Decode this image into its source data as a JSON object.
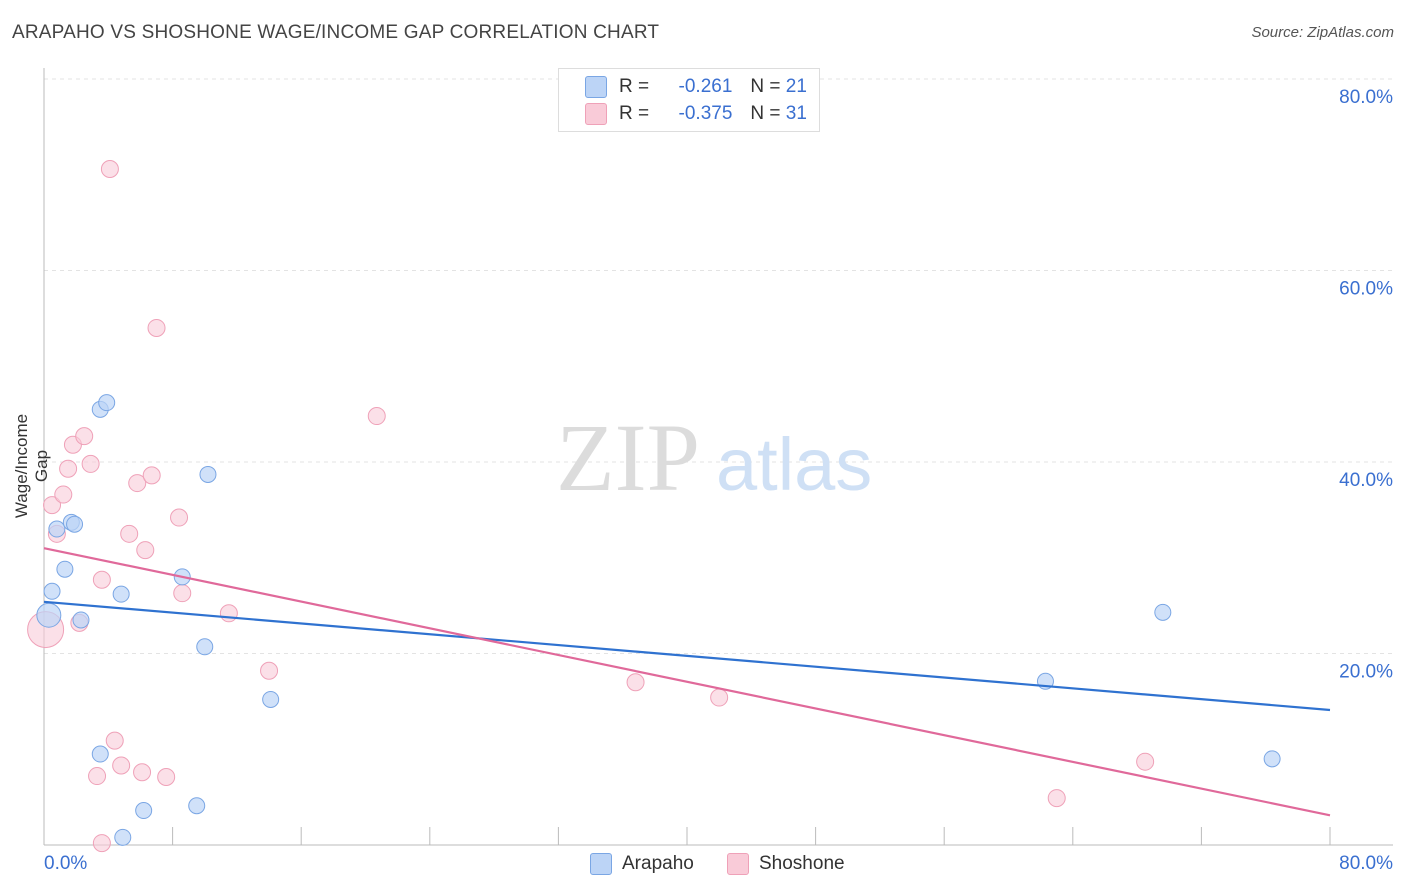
{
  "title": "ARAPAHO VS SHOSHONE WAGE/INCOME GAP CORRELATION CHART",
  "source": "Source: ZipAtlas.com",
  "watermark": {
    "zip": "ZIP",
    "atlas": "atlas"
  },
  "legend": {
    "r_label": "R =",
    "n_label": "N =",
    "arapaho": {
      "r": "-0.261",
      "n": "21"
    },
    "shoshone": {
      "r": "-0.375",
      "n": "31"
    }
  },
  "colors": {
    "arapaho_fill": "#bcd4f6",
    "arapaho_stroke": "#7aa6e4",
    "arapaho_line": "#2f72d0",
    "shoshone_fill": "#f9cbd8",
    "shoshone_stroke": "#efa1b8",
    "shoshone_line": "#e0699a",
    "tick_label": "#3a6fd0"
  },
  "chart_data": {
    "type": "scatter",
    "title": "ARAPAHO VS SHOSHONE WAGE/INCOME GAP CORRELATION CHART",
    "xlabel": "",
    "ylabel": "Wage/Income Gap",
    "xlim": [
      0,
      80
    ],
    "ylim": [
      0,
      80
    ],
    "x_tick_labels": [
      "0.0%",
      "80.0%"
    ],
    "y_tick_labels": [
      "20.0%",
      "40.0%",
      "60.0%",
      "80.0%"
    ],
    "y_ticks": [
      20,
      40,
      60,
      80
    ],
    "series": [
      {
        "name": "Arapaho",
        "points": [
          {
            "x": 0.3,
            "y": 24.0
          },
          {
            "x": 0.5,
            "y": 26.5
          },
          {
            "x": 0.8,
            "y": 33.0
          },
          {
            "x": 1.3,
            "y": 28.8
          },
          {
            "x": 1.7,
            "y": 33.7
          },
          {
            "x": 1.9,
            "y": 33.5
          },
          {
            "x": 2.3,
            "y": 23.5
          },
          {
            "x": 3.5,
            "y": 45.5
          },
          {
            "x": 3.9,
            "y": 46.2
          },
          {
            "x": 3.5,
            "y": 9.5
          },
          {
            "x": 4.8,
            "y": 26.2
          },
          {
            "x": 6.2,
            "y": 3.6
          },
          {
            "x": 8.6,
            "y": 28.0
          },
          {
            "x": 9.5,
            "y": 4.1
          },
          {
            "x": 10.0,
            "y": 20.7
          },
          {
            "x": 10.2,
            "y": 38.7
          },
          {
            "x": 14.1,
            "y": 15.2
          },
          {
            "x": 4.9,
            "y": 0.8
          },
          {
            "x": 62.3,
            "y": 17.1
          },
          {
            "x": 69.6,
            "y": 24.3
          },
          {
            "x": 76.4,
            "y": 9.0
          }
        ],
        "trend": {
          "x": [
            0,
            80
          ],
          "y": [
            25.4,
            14.1
          ]
        }
      },
      {
        "name": "Shoshone",
        "points": [
          {
            "x": 0.1,
            "y": 22.5
          },
          {
            "x": 0.5,
            "y": 35.5
          },
          {
            "x": 0.8,
            "y": 32.5
          },
          {
            "x": 1.2,
            "y": 36.6
          },
          {
            "x": 1.5,
            "y": 39.3
          },
          {
            "x": 1.8,
            "y": 41.8
          },
          {
            "x": 2.2,
            "y": 23.2
          },
          {
            "x": 2.5,
            "y": 42.7
          },
          {
            "x": 2.9,
            "y": 39.8
          },
          {
            "x": 3.3,
            "y": 7.2
          },
          {
            "x": 3.6,
            "y": 27.7
          },
          {
            "x": 3.6,
            "y": 0.2
          },
          {
            "x": 4.1,
            "y": 70.6
          },
          {
            "x": 4.4,
            "y": 10.9
          },
          {
            "x": 4.8,
            "y": 8.3
          },
          {
            "x": 5.3,
            "y": 32.5
          },
          {
            "x": 5.8,
            "y": 37.8
          },
          {
            "x": 6.1,
            "y": 7.6
          },
          {
            "x": 6.3,
            "y": 30.8
          },
          {
            "x": 6.7,
            "y": 38.6
          },
          {
            "x": 7.0,
            "y": 54.0
          },
          {
            "x": 7.6,
            "y": 7.1
          },
          {
            "x": 8.4,
            "y": 34.2
          },
          {
            "x": 8.6,
            "y": 26.3
          },
          {
            "x": 11.5,
            "y": 24.2
          },
          {
            "x": 14.0,
            "y": 18.2
          },
          {
            "x": 20.7,
            "y": 44.8
          },
          {
            "x": 36.8,
            "y": 17.0
          },
          {
            "x": 42.0,
            "y": 15.4
          },
          {
            "x": 63.0,
            "y": 4.9
          },
          {
            "x": 68.5,
            "y": 8.7
          }
        ],
        "trend": {
          "x": [
            0,
            80
          ],
          "y": [
            31.0,
            3.1
          ]
        }
      }
    ],
    "legend": [
      {
        "name": "Arapaho",
        "r": -0.261,
        "n": 21
      },
      {
        "name": "Shoshone",
        "r": -0.375,
        "n": 31
      }
    ]
  }
}
